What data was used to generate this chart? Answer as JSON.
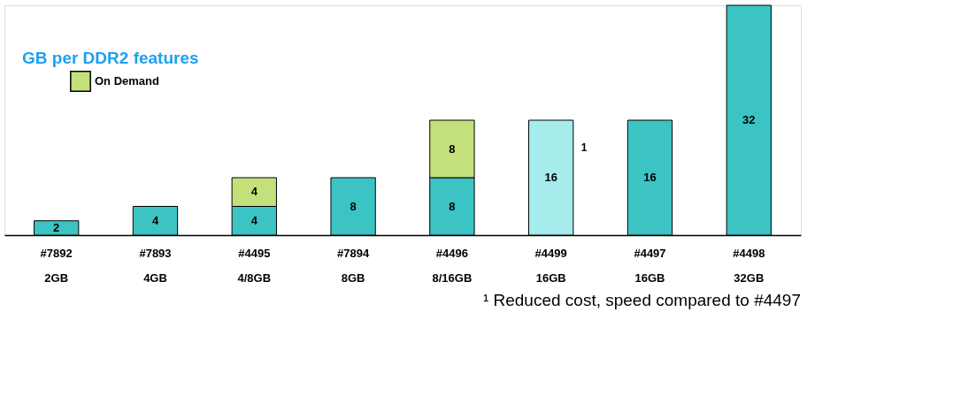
{
  "chart_data": {
    "type": "bar",
    "title": "GB per DDR2 features",
    "stacked": true,
    "data_labels": true,
    "legend": "top left",
    "ylim": [
      0,
      32
    ],
    "categories": [
      "#7892\n2GB",
      "#7893\n4GB",
      "#4495\n4/8GB",
      "#7894\n8GB",
      "#4496\n8/16GB",
      "#4499\n16GB",
      "#4497\n16GB",
      "#4498\n32GB"
    ],
    "series": [
      {
        "colors": [
          "#3cc3c3",
          "#3cc3c3",
          "#3cc3c3",
          "#3cc3c3",
          "#3cc3c3",
          "#a6ecec",
          "#3cc3c3",
          "#3cc3c3"
        ],
        "values": [
          2,
          4,
          4,
          8,
          8,
          16,
          16,
          32
        ]
      },
      {
        "name": "On Demand",
        "color": "#c4e07a",
        "values": [
          null,
          null,
          4,
          null,
          8,
          null,
          null,
          null
        ]
      }
    ],
    "annotations": [
      "1",
      "¹ Reduced cost, speed compared to #4497"
    ]
  }
}
